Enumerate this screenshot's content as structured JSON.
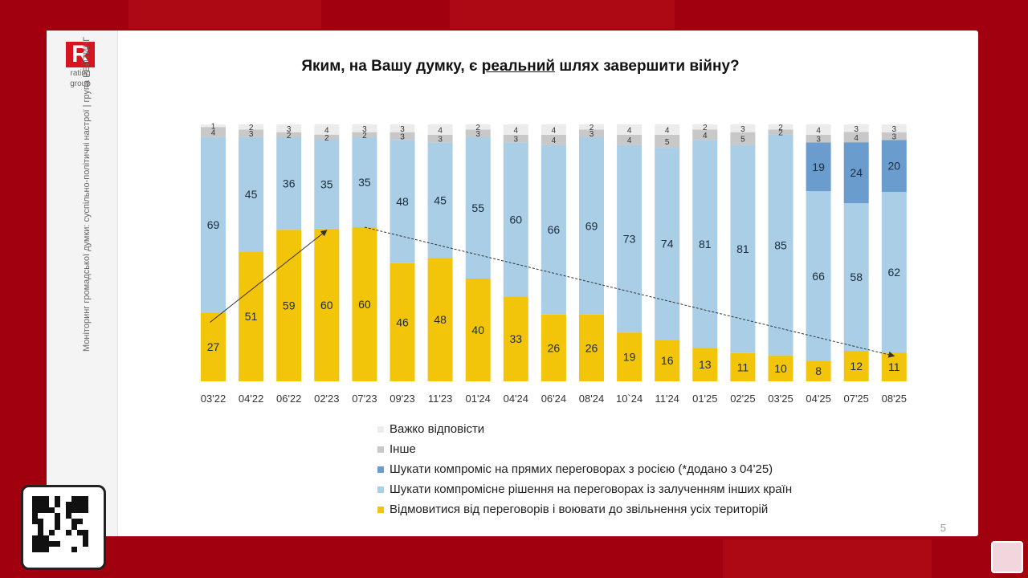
{
  "slide": {
    "logo_letter": "R",
    "logo_line1": "rating",
    "logo_line2": "group",
    "vertical_note": "Моніторинг громадської думки: суспільно-політичні настрої | група РЕЙТИНГ",
    "title_before": "Яким, на Вашу думку, є ",
    "title_underlined": "реальний",
    "title_after": " шлях завершити війну?",
    "page_number": "5"
  },
  "colors": {
    "background": "#a1000e",
    "fight": "#f2c40a",
    "compromise_other": "#a9cee6",
    "compromise_direct": "#6a9dcd",
    "other": "#c8c8c8",
    "hard_to_say": "#ececec"
  },
  "chart_data": {
    "type": "bar",
    "stacked": true,
    "categories": [
      "03'22",
      "04'22",
      "06'22",
      "02'23",
      "07'23",
      "09'23",
      "11'23",
      "01'24",
      "04'24",
      "06'24",
      "08'24",
      "10`24",
      "11'24",
      "01'25",
      "02'25",
      "03'25",
      "04'25",
      "07'25",
      "08'25"
    ],
    "series": [
      {
        "name": "Відмовитися від переговорів і воювати до звільнення усіх територій",
        "color": "#f2c40a",
        "values": [
          27,
          51,
          59,
          60,
          60,
          46,
          48,
          40,
          33,
          26,
          26,
          19,
          16,
          13,
          11,
          10,
          8,
          12,
          11
        ]
      },
      {
        "name": "Шукати компромісне рішення на переговорах із залученням інших країн",
        "color": "#a9cee6",
        "values": [
          69,
          45,
          36,
          35,
          35,
          48,
          45,
          55,
          60,
          66,
          69,
          73,
          74,
          81,
          81,
          85,
          66,
          58,
          62
        ]
      },
      {
        "name": "Шукати компроміс на прямих переговорах з росією (*додано з 04'25)",
        "color": "#6a9dcd",
        "values": [
          null,
          null,
          null,
          null,
          null,
          null,
          null,
          null,
          null,
          null,
          null,
          null,
          null,
          null,
          null,
          null,
          19,
          24,
          20
        ]
      },
      {
        "name": "Інше",
        "color": "#c8c8c8",
        "values": [
          4,
          3,
          2,
          2,
          2,
          3,
          3,
          3,
          3,
          4,
          3,
          4,
          5,
          4,
          5,
          2,
          3,
          4,
          3
        ]
      },
      {
        "name": "Важко відповісти",
        "color": "#ececec",
        "values": [
          1,
          2,
          3,
          4,
          3,
          3,
          4,
          2,
          4,
          4,
          2,
          4,
          4,
          2,
          3,
          2,
          4,
          3,
          3
        ]
      }
    ],
    "ylim": [
      0,
      100
    ],
    "legend_position": "bottom",
    "legend_order": [
      "Важко відповісти",
      "Інше",
      "Шукати компроміс на прямих переговорах з росією (*додано з 04'25)",
      "Шукати компромісне рішення на переговорах із залученням інших країн",
      "Відмовитися від переговорів і воювати до звільнення усіх територій"
    ],
    "annotations": [
      {
        "type": "arrow",
        "from": {
          "category": "03'22",
          "value": 27
        },
        "to": {
          "category": "02'23",
          "value": 60
        }
      },
      {
        "type": "arrow",
        "from": {
          "category": "07'23",
          "value": 60
        },
        "to": {
          "category": "08'25",
          "value": 11
        }
      }
    ]
  }
}
